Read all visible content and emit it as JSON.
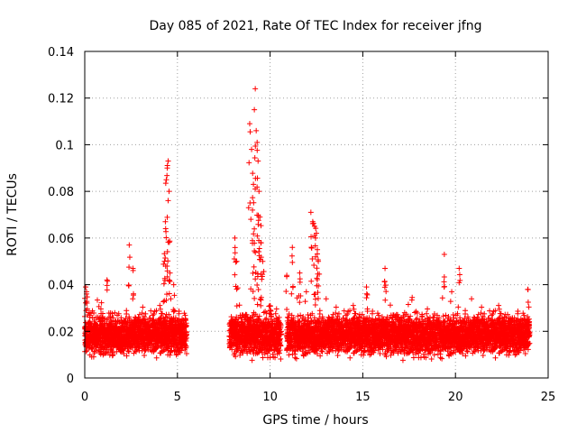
{
  "chart_data": {
    "type": "scatter",
    "title": "Day 085 of 2021, Rate Of TEC Index for receiver jfng",
    "xlabel": "GPS time / hours",
    "ylabel": "ROTI / TECUs",
    "xlim": [
      0,
      25
    ],
    "ylim": [
      0,
      0.14
    ],
    "xticks": [
      0,
      5,
      10,
      15,
      20,
      25
    ],
    "yticks": [
      0,
      0.02,
      0.04,
      0.06,
      0.08,
      0.1,
      0.12,
      0.14
    ],
    "grid": true,
    "marker": "+",
    "color": "#ff0000",
    "band": {
      "segments": [
        [
          0,
          5.5
        ],
        [
          7.8,
          10.6
        ],
        [
          10.9,
          24.0
        ]
      ],
      "step_hours": 0.0083,
      "typical_range": [
        0.007,
        0.027
      ]
    },
    "peaks": [
      [
        0.05,
        0.039
      ],
      [
        0.1,
        0.036
      ],
      [
        1.2,
        0.042
      ],
      [
        2.4,
        0.057
      ],
      [
        2.6,
        0.047
      ],
      [
        4.3,
        0.05
      ],
      [
        4.35,
        0.067
      ],
      [
        4.4,
        0.085
      ],
      [
        4.45,
        0.09
      ],
      [
        4.5,
        0.093
      ],
      [
        4.55,
        0.08
      ],
      [
        4.6,
        0.045
      ],
      [
        4.8,
        0.04
      ],
      [
        8.1,
        0.06
      ],
      [
        8.2,
        0.05
      ],
      [
        8.9,
        0.109
      ],
      [
        9.0,
        0.098
      ],
      [
        9.05,
        0.072
      ],
      [
        9.1,
        0.083
      ],
      [
        9.15,
        0.115
      ],
      [
        9.2,
        0.124
      ],
      [
        9.25,
        0.106
      ],
      [
        9.3,
        0.101
      ],
      [
        9.35,
        0.093
      ],
      [
        9.4,
        0.08
      ],
      [
        9.45,
        0.069
      ],
      [
        9.5,
        0.058
      ],
      [
        9.6,
        0.05
      ],
      [
        10.0,
        0.031
      ],
      [
        10.9,
        0.044
      ],
      [
        11.2,
        0.056
      ],
      [
        11.6,
        0.045
      ],
      [
        12.2,
        0.071
      ],
      [
        12.3,
        0.067
      ],
      [
        12.4,
        0.065
      ],
      [
        12.45,
        0.06
      ],
      [
        12.5,
        0.062
      ],
      [
        12.55,
        0.055
      ],
      [
        12.6,
        0.05
      ],
      [
        15.2,
        0.039
      ],
      [
        16.2,
        0.047
      ],
      [
        19.4,
        0.053
      ],
      [
        20.2,
        0.047
      ],
      [
        23.9,
        0.038
      ]
    ]
  }
}
